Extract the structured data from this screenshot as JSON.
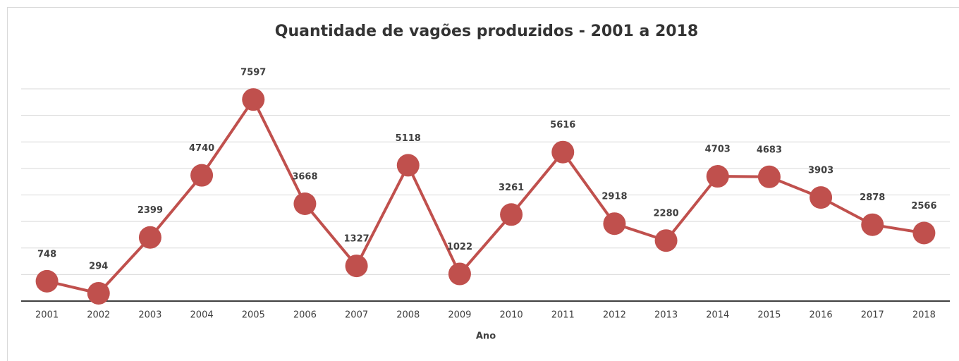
{
  "chart_data": {
    "type": "line",
    "title": "Quantidade de vagões produzidos - 2001 a 2018",
    "x_label": "Ano",
    "categories": [
      "2001",
      "2002",
      "2003",
      "2004",
      "2005",
      "2006",
      "2007",
      "2008",
      "2009",
      "2010",
      "2011",
      "2012",
      "2013",
      "2014",
      "2015",
      "2016",
      "2017",
      "2018"
    ],
    "series": [
      {
        "name": "Quantidade",
        "color": "#c0504d",
        "values": [
          748,
          294,
          2399,
          4740,
          7597,
          3668,
          1327,
          5118,
          1022,
          3261,
          5616,
          2918,
          2280,
          4703,
          4683,
          3903,
          2878,
          2566
        ]
      }
    ],
    "ylim": [
      0,
      8000
    ],
    "yticks": [
      1000,
      2000,
      3000,
      4000,
      5000,
      6000,
      7000,
      8000
    ],
    "grid": true
  }
}
